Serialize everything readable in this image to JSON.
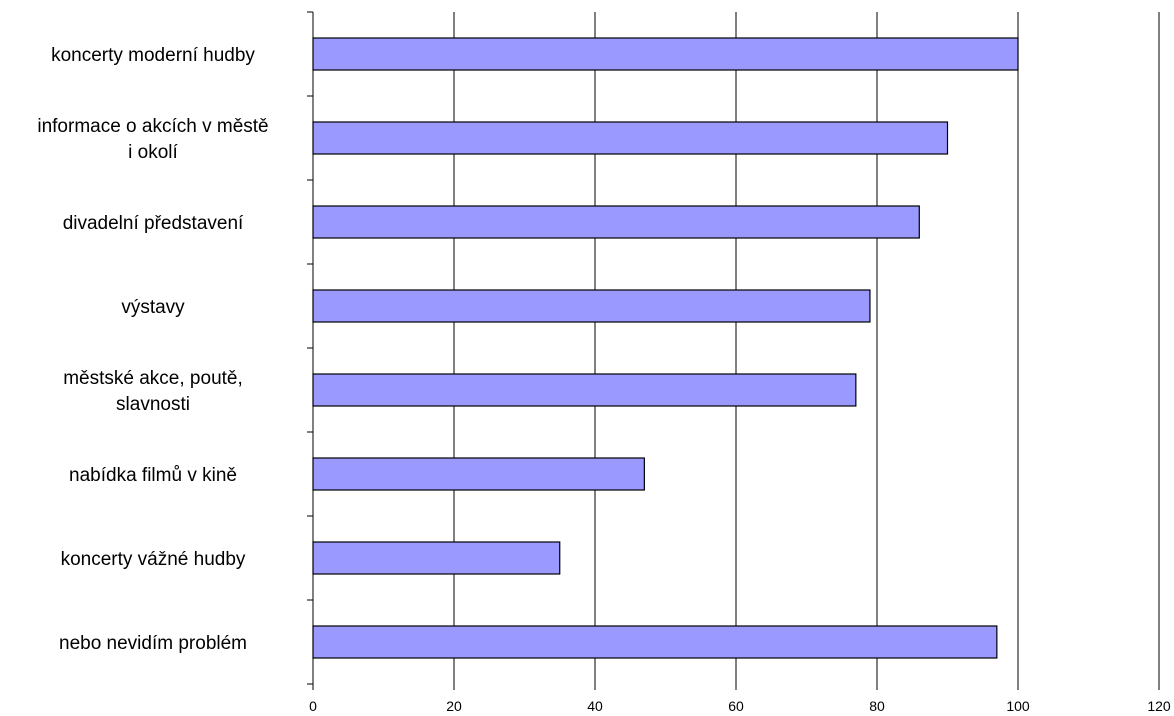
{
  "chart_data": {
    "type": "bar",
    "orientation": "horizontal",
    "title": "",
    "xlabel": "",
    "ylabel": "",
    "categories": [
      "koncerty moderní hudby",
      "informace o akcích v městě i okolí",
      "divadelní představení",
      "výstavy",
      "městské akce, poutě, slavnosti",
      "nabídka filmů v kině",
      "koncerty vážné hudby",
      "nebo nevidím problém"
    ],
    "category_lines": [
      [
        "koncerty moderní hudby"
      ],
      [
        "informace o akcích v městě",
        "i okolí"
      ],
      [
        "divadelní představení"
      ],
      [
        "výstavy"
      ],
      [
        "městské akce, poutě,",
        "slavnosti"
      ],
      [
        "nabídka filmů v kině"
      ],
      [
        "koncerty vážné hudby"
      ],
      [
        "nebo nevidím problém"
      ]
    ],
    "values": [
      100,
      90,
      86,
      79,
      77,
      47,
      35,
      97
    ],
    "xlim": [
      0,
      120
    ],
    "xticks": [
      "0",
      "20",
      "40",
      "60",
      "80",
      "100",
      "120"
    ],
    "grid": "vertical",
    "bar_color": "#9999ff",
    "bar_edge_color": "#000000"
  }
}
